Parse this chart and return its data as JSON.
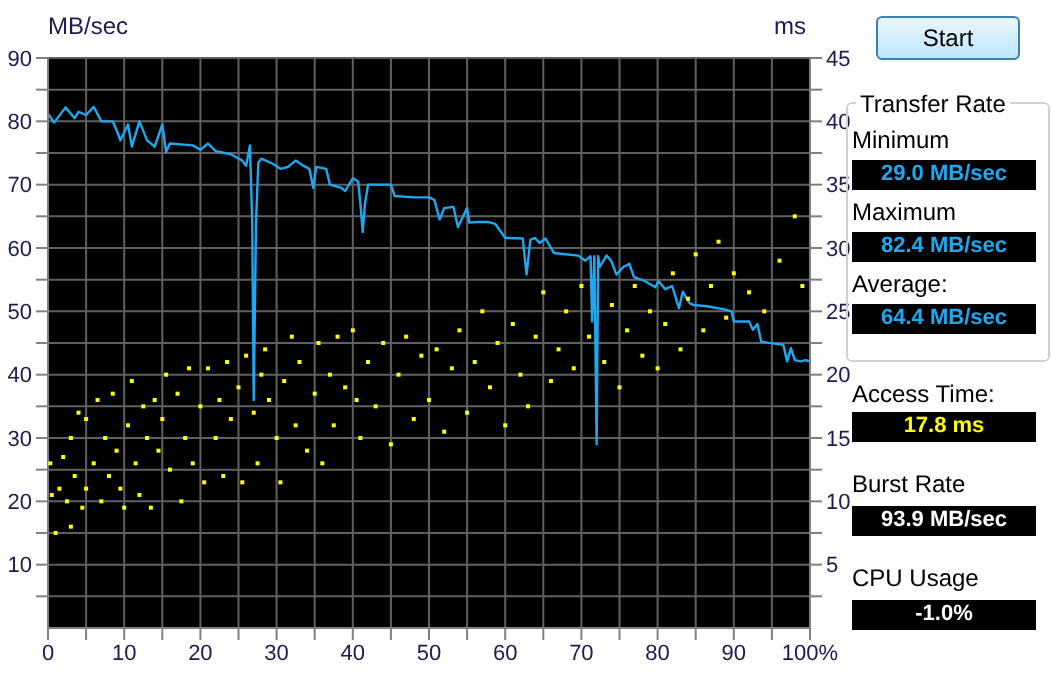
{
  "chart_data": {
    "type": "line",
    "ylabel": "MB/sec",
    "y2label": "ms",
    "xlim": [
      0,
      100
    ],
    "xticks": [
      0,
      {
        "value": 5,
        "label": null
      },
      10,
      {
        "value": 15,
        "label": null
      },
      20,
      {
        "value": 25,
        "label": null
      },
      30,
      {
        "value": 35,
        "label": null
      },
      40,
      {
        "value": 45,
        "label": null
      },
      50,
      {
        "value": 55,
        "label": null
      },
      60,
      {
        "value": 65,
        "label": null
      },
      70,
      {
        "value": 75,
        "label": null
      },
      80,
      {
        "value": 85,
        "label": null
      },
      90,
      {
        "value": 95,
        "label": null
      },
      {
        "value": 100,
        "label": "100%"
      }
    ],
    "ylim": [
      0,
      90
    ],
    "yticks": [
      {
        "value": 5,
        "label": null
      },
      10,
      {
        "value": 15,
        "label": null
      },
      20,
      {
        "value": 25,
        "label": null
      },
      30,
      {
        "value": 35,
        "label": null
      },
      40,
      {
        "value": 45,
        "label": null
      },
      50,
      {
        "value": 55,
        "label": null
      },
      60,
      {
        "value": 65,
        "label": null
      },
      70,
      {
        "value": 75,
        "label": null
      },
      80,
      {
        "value": 85,
        "label": null
      },
      90
    ],
    "y2lim": [
      0,
      45
    ],
    "y2ticks": [
      {
        "value": 2.5,
        "label": null
      },
      5,
      {
        "value": 7.5,
        "label": null
      },
      10,
      {
        "value": 12.5,
        "label": null
      },
      15,
      {
        "value": 17.5,
        "label": null
      },
      20,
      {
        "value": 22.5,
        "label": null
      },
      25,
      {
        "value": 27.5,
        "label": null
      },
      30,
      {
        "value": 32.5,
        "label": null
      },
      35,
      {
        "value": 37.5,
        "label": null
      },
      40,
      {
        "value": 42.5,
        "label": null
      },
      45
    ],
    "grid": true,
    "series": [
      {
        "type": "line",
        "color": "#1ea8f0",
        "line_style": "solid",
        "marker": "none",
        "x": [
          0,
          0.8,
          2.3,
          3.5,
          4,
          5,
          6,
          7,
          8.5,
          9.2,
          9.5,
          10.5,
          11,
          12,
          13,
          14,
          15,
          15.5,
          16,
          19,
          20,
          21,
          22,
          24,
          25.5,
          26,
          26.5,
          26.8,
          27,
          27.3,
          27.6,
          28,
          29.5,
          30.5,
          31.5,
          32.5,
          33.5,
          34.3,
          34.8,
          35.2,
          36.5,
          37,
          38.5,
          39,
          40,
          40.7,
          41,
          41.3,
          41.6,
          42,
          45,
          45.5,
          48,
          50,
          50.7,
          51.4,
          52,
          53.2,
          53.8,
          55,
          55.3,
          56.4,
          57.8,
          58.7,
          60,
          62.3,
          62.8,
          63.3,
          63.9,
          64.5,
          65.3,
          66.4,
          69.6,
          70.5,
          71.2,
          71.4,
          71.7,
          72,
          72.2,
          72.4,
          73.3,
          73.9,
          74.6,
          75.5,
          76.3,
          76.9,
          78.3,
          79.7,
          80.1,
          81,
          81.9,
          82.8,
          83.3,
          84.2,
          84.7,
          86.5,
          88.8,
          89.7,
          90,
          92,
          92.5,
          93.1,
          93.6,
          96.5,
          97,
          97.5,
          98,
          98.8,
          99.4,
          100
        ],
        "values": [
          81.2,
          79.8,
          82.2,
          80.5,
          81.5,
          81,
          82.3,
          80,
          80,
          78,
          77,
          79.5,
          76,
          80,
          77,
          76,
          79.5,
          75.2,
          76.5,
          76.2,
          75.5,
          76.5,
          75.3,
          74.8,
          73.8,
          73,
          76.2,
          64,
          36,
          64,
          73.5,
          74.1,
          73.3,
          72.5,
          72.8,
          73.8,
          73,
          72.5,
          69.5,
          72.8,
          72.5,
          70,
          69.5,
          69,
          71,
          70.5,
          67,
          62.5,
          67,
          70,
          70,
          68.2,
          68,
          68,
          67.6,
          64.5,
          66.3,
          66.5,
          63.3,
          66.3,
          64,
          64.1,
          64.1,
          63.8,
          61.6,
          61.5,
          55.8,
          61.3,
          61.6,
          60.8,
          61.5,
          59.2,
          58.8,
          58,
          58.7,
          48.4,
          58.7,
          29,
          58.7,
          57,
          58.8,
          58,
          55.8,
          57,
          57.5,
          55.4,
          54.8,
          53.8,
          54.8,
          53.5,
          54,
          50.5,
          53.1,
          51.3,
          51,
          50.8,
          50.3,
          50,
          48.4,
          48.4,
          47.1,
          48,
          45.2,
          44.7,
          42.1,
          44.2,
          42.3,
          42.1,
          42.3,
          42.1
        ]
      },
      {
        "type": "scatter",
        "axis": "y2",
        "color": "#ffff00",
        "marker": "square",
        "x": [
          0.3,
          0.5,
          1,
          1.5,
          2,
          2.5,
          3,
          3,
          3.5,
          4,
          4.5,
          5,
          5,
          6,
          6.5,
          7,
          7.5,
          8,
          8.5,
          9,
          9.5,
          10,
          10.5,
          11,
          11.5,
          12,
          12.5,
          13,
          13.5,
          14,
          14.5,
          15,
          15.5,
          16,
          17,
          17.5,
          18,
          18.5,
          19,
          20,
          20.5,
          21,
          22,
          22.5,
          23,
          23.5,
          24,
          25,
          25.5,
          26,
          27,
          27.5,
          28,
          28.5,
          29,
          30,
          30.5,
          31,
          32,
          32.5,
          33,
          34,
          35,
          35.5,
          36,
          37,
          37.5,
          38,
          39,
          40,
          40.5,
          41,
          42,
          43,
          44,
          45,
          46,
          47,
          48,
          49,
          50,
          51,
          52,
          53,
          54,
          55,
          56,
          57,
          58,
          59,
          60,
          61,
          62,
          63,
          64,
          65,
          66,
          67,
          68,
          69,
          70,
          71,
          73,
          74,
          75,
          76,
          77,
          78,
          79,
          80,
          81,
          82,
          83,
          84,
          85,
          86,
          87,
          88,
          89,
          90,
          92,
          94,
          96,
          98,
          99
        ],
        "values": [
          13,
          10.5,
          7.5,
          11,
          13.5,
          10,
          8,
          15,
          12,
          17,
          9.5,
          11,
          16.5,
          13,
          18,
          10,
          15,
          12,
          18.5,
          14,
          11,
          9.5,
          16,
          19.5,
          13,
          10.5,
          17.5,
          15,
          9.5,
          18,
          14,
          16.5,
          20,
          12.5,
          18.5,
          10,
          15,
          20.5,
          13,
          17.5,
          11.5,
          20.5,
          15,
          18,
          12,
          21,
          16.5,
          19,
          11.5,
          21.5,
          17,
          13,
          20,
          22,
          18,
          15,
          11.5,
          19.5,
          23,
          16,
          21,
          14,
          18.5,
          22.5,
          13,
          20,
          16,
          23,
          19,
          23.5,
          18,
          15,
          21,
          17.5,
          22.5,
          14.5,
          20,
          23,
          16.5,
          21.5,
          18,
          22,
          15.5,
          20.5,
          23.5,
          17,
          21,
          25,
          19,
          22.5,
          16,
          24,
          20,
          17.5,
          23,
          26.5,
          19.5,
          22,
          25,
          20.5,
          27,
          23,
          21,
          25.5,
          19,
          23.5,
          27,
          21.5,
          25,
          20.5,
          24,
          28,
          22,
          26,
          29.5,
          23.5,
          27,
          30.5,
          24.5,
          28,
          26.5,
          25,
          29,
          32.5,
          27
        ]
      }
    ],
    "annotations": [
      "Start",
      "Transfer Rate",
      "Minimum",
      "29.0 MB/sec",
      "Maximum",
      "82.4 MB/sec",
      "Average:",
      "64.4 MB/sec",
      "Access Time:",
      "17.8 ms",
      "Burst Rate",
      "93.9 MB/sec",
      "CPU Usage",
      "-1.0%"
    ]
  }
}
